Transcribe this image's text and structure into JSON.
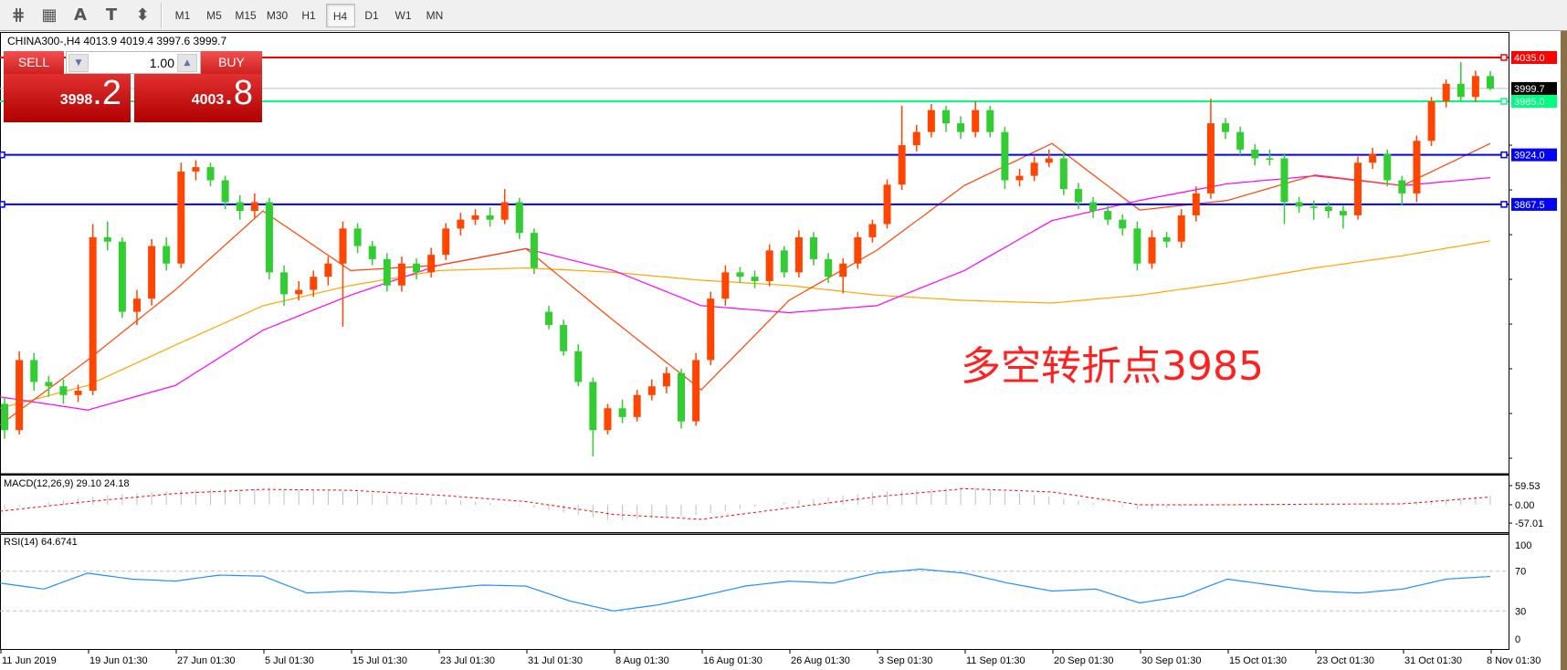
{
  "toolbar": {
    "icons": [
      "fibonacci-fan-icon",
      "fibonacci-grid-icon",
      "text-label-icon",
      "text-box-icon",
      "arrows-icon"
    ],
    "icon_glyphs": [
      "⋕",
      "▦",
      "A",
      "T",
      "⬍"
    ],
    "timeframes": [
      "M1",
      "M5",
      "M15",
      "M30",
      "H1",
      "H4",
      "D1",
      "W1",
      "MN"
    ],
    "active_timeframe": "H4"
  },
  "header": {
    "title": "CHINA300-,H4  4013.9 4019.4 3997.6 3999.7"
  },
  "trade": {
    "sell_label": "SELL",
    "buy_label": "BUY",
    "lot": "1.00",
    "sell_price_main": "3998",
    "sell_price_frac": ".2",
    "buy_price_main": "4003",
    "buy_price_frac": ".8"
  },
  "annotation": "多空转折点3985",
  "colors": {
    "bull": "#ff4500",
    "bear": "#32cd32",
    "ma_fast": "#ff4500",
    "ma_mid": "#ff00ff",
    "ma_slow": "#ffa500",
    "resistance": "#ff0000",
    "pivot": "#00ff7f",
    "support": "#0000ff",
    "bid": "#c0c0c0",
    "rsi": "#1e90ff",
    "macd_signal": "#ff0000",
    "macd_hist": "#c0c0c0"
  },
  "chart_data": {
    "type": "candlestick",
    "symbol": "CHINA300-",
    "timeframe": "H4",
    "ylim": [
      3578,
      4035
    ],
    "y_ticks": [
      "3935.0",
      "3884.0",
      "3833.0",
      "3782.0",
      "3731.0",
      "3680.0",
      "3629.0",
      "3578.0"
    ],
    "x_ticks": [
      "11 Jun 2019",
      "19 Jun 01:30",
      "27 Jun 01:30",
      "5 Jul 01:30",
      "15 Jul 01:30",
      "23 Jul 01:30",
      "31 Jul 01:30",
      "8 Aug 01:30",
      "16 Aug 01:30",
      "26 Aug 01:30",
      "3 Sep 01:30",
      "11 Sep 01:30",
      "20 Sep 01:30",
      "30 Sep 01:30",
      "15 Oct 01:30",
      "23 Oct 01:30",
      "31 Oct 01:30",
      "8 Nov 01:30"
    ],
    "candles_ohlc": [
      [
        3640,
        3648,
        3600,
        3610
      ],
      [
        3610,
        3700,
        3605,
        3690
      ],
      [
        3690,
        3698,
        3655,
        3665
      ],
      [
        3665,
        3672,
        3648,
        3660
      ],
      [
        3660,
        3668,
        3640,
        3650
      ],
      [
        3650,
        3662,
        3642,
        3655
      ],
      [
        3655,
        3845,
        3650,
        3830
      ],
      [
        3830,
        3848,
        3815,
        3825
      ],
      [
        3825,
        3830,
        3738,
        3745
      ],
      [
        3745,
        3770,
        3730,
        3760
      ],
      [
        3760,
        3828,
        3752,
        3820
      ],
      [
        3820,
        3830,
        3792,
        3800
      ],
      [
        3800,
        3915,
        3795,
        3905
      ],
      [
        3905,
        3918,
        3895,
        3910
      ],
      [
        3910,
        3915,
        3888,
        3895
      ],
      [
        3895,
        3900,
        3862,
        3870
      ],
      [
        3870,
        3878,
        3850,
        3860
      ],
      [
        3860,
        3880,
        3852,
        3870
      ],
      [
        3870,
        3875,
        3782,
        3790
      ],
      [
        3790,
        3798,
        3752,
        3765
      ],
      [
        3765,
        3780,
        3758,
        3770
      ],
      [
        3770,
        3792,
        3762,
        3785
      ],
      [
        3785,
        3808,
        3775,
        3800
      ],
      [
        3800,
        3848,
        3728,
        3840
      ],
      [
        3840,
        3846,
        3812,
        3820
      ],
      [
        3820,
        3826,
        3798,
        3805
      ],
      [
        3805,
        3812,
        3768,
        3775
      ],
      [
        3775,
        3808,
        3768,
        3800
      ],
      [
        3800,
        3806,
        3782,
        3790
      ],
      [
        3790,
        3818,
        3784,
        3810
      ],
      [
        3810,
        3846,
        3804,
        3840
      ],
      [
        3840,
        3858,
        3832,
        3850
      ],
      [
        3850,
        3862,
        3844,
        3855
      ],
      [
        3855,
        3864,
        3842,
        3850
      ],
      [
        3850,
        3885,
        3845,
        3870
      ],
      [
        3870,
        3875,
        3828,
        3835
      ],
      [
        3835,
        3840,
        3788,
        3795
      ],
      [
        3745,
        3752,
        3725,
        3730
      ],
      [
        3730,
        3736,
        3695,
        3700
      ],
      [
        3700,
        3708,
        3660,
        3665
      ],
      [
        3665,
        3670,
        3580,
        3610
      ],
      [
        3610,
        3640,
        3605,
        3635
      ],
      [
        3635,
        3645,
        3618,
        3625
      ],
      [
        3625,
        3656,
        3620,
        3650
      ],
      [
        3650,
        3668,
        3644,
        3660
      ],
      [
        3660,
        3682,
        3652,
        3675
      ],
      [
        3675,
        3680,
        3612,
        3620
      ],
      [
        3620,
        3698,
        3615,
        3690
      ],
      [
        3690,
        3768,
        3684,
        3760
      ],
      [
        3760,
        3798,
        3752,
        3790
      ],
      [
        3790,
        3796,
        3778,
        3785
      ],
      [
        3785,
        3792,
        3772,
        3780
      ],
      [
        3780,
        3822,
        3774,
        3815
      ],
      [
        3815,
        3820,
        3784,
        3790
      ],
      [
        3790,
        3838,
        3784,
        3830
      ],
      [
        3830,
        3836,
        3798,
        3805
      ],
      [
        3805,
        3812,
        3778,
        3785
      ],
      [
        3785,
        3806,
        3766,
        3800
      ],
      [
        3800,
        3836,
        3794,
        3830
      ],
      [
        3830,
        3850,
        3824,
        3845
      ],
      [
        3845,
        3896,
        3840,
        3890
      ],
      [
        3890,
        3980,
        3884,
        3935
      ],
      [
        3935,
        3958,
        3928,
        3950
      ],
      [
        3950,
        3982,
        3944,
        3975
      ],
      [
        3975,
        3980,
        3950,
        3960
      ],
      [
        3960,
        3968,
        3942,
        3950
      ],
      [
        3950,
        3985,
        3944,
        3975
      ],
      [
        3975,
        3980,
        3944,
        3950
      ],
      [
        3950,
        3956,
        3885,
        3895
      ],
      [
        3895,
        3908,
        3888,
        3900
      ],
      [
        3900,
        3922,
        3894,
        3915
      ],
      [
        3915,
        3930,
        3910,
        3920
      ],
      [
        3920,
        3928,
        3878,
        3885
      ],
      [
        3885,
        3892,
        3862,
        3870
      ],
      [
        3870,
        3876,
        3852,
        3860
      ],
      [
        3860,
        3866,
        3844,
        3850
      ],
      [
        3850,
        3856,
        3832,
        3840
      ],
      [
        3840,
        3848,
        3792,
        3800
      ],
      [
        3800,
        3838,
        3794,
        3830
      ],
      [
        3830,
        3836,
        3818,
        3825
      ],
      [
        3825,
        3862,
        3818,
        3855
      ],
      [
        3855,
        3888,
        3848,
        3880
      ],
      [
        3880,
        3988,
        3874,
        3960
      ],
      [
        3960,
        3966,
        3942,
        3950
      ],
      [
        3950,
        3956,
        3924,
        3930
      ],
      [
        3930,
        3936,
        3912,
        3920
      ],
      [
        3920,
        3930,
        3912,
        3920
      ],
      [
        3920,
        3926,
        3845,
        3870
      ],
      [
        3870,
        3876,
        3858,
        3865
      ],
      [
        3865,
        3872,
        3850,
        3865
      ],
      [
        3865,
        3870,
        3852,
        3860
      ],
      [
        3860,
        3866,
        3840,
        3855
      ],
      [
        3855,
        3922,
        3850,
        3915
      ],
      [
        3915,
        3932,
        3908,
        3925
      ],
      [
        3925,
        3930,
        3888,
        3895
      ],
      [
        3895,
        3900,
        3866,
        3880
      ],
      [
        3880,
        3946,
        3870,
        3940
      ],
      [
        3940,
        3990,
        3934,
        3985
      ],
      [
        3985,
        4010,
        3978,
        4005
      ],
      [
        4005,
        4030,
        3985,
        3990
      ],
      [
        3990,
        4020,
        3984,
        4013.9
      ],
      [
        4013.9,
        4019.4,
        3997.6,
        3999.7
      ]
    ],
    "moving_averages_at_x_ticks": {
      "fast": [
        3616,
        3690,
        3770,
        3860,
        3792,
        3798,
        3817,
        3735,
        3656,
        3758,
        3815,
        3889,
        3937,
        3861,
        3872,
        3901,
        3889,
        3937
      ],
      "mid": [
        3648,
        3633,
        3661,
        3724,
        3764,
        3798,
        3817,
        3792,
        3752,
        3744,
        3752,
        3792,
        3849,
        3872,
        3891,
        3900,
        3889,
        3898
      ],
      "slow": [
        3635,
        3661,
        3707,
        3752,
        3775,
        3792,
        3795,
        3790,
        3781,
        3775,
        3764,
        3758,
        3755,
        3764,
        3778,
        3795,
        3809,
        3826
      ]
    },
    "levels": [
      {
        "price": 4035.0,
        "label": "4035.0",
        "role": "resistance"
      },
      {
        "price": 3985.0,
        "label": "3985.0",
        "role": "pivot"
      },
      {
        "price": 3924.0,
        "label": "3924.0",
        "role": "support"
      },
      {
        "price": 3867.5,
        "label": "3867.5",
        "role": "support"
      }
    ],
    "bid": {
      "price": 3999.7,
      "label": "3999.7"
    },
    "macd": {
      "label": "MACD(12,26,9) 29.10 24.18",
      "ticks": [
        "59.53",
        "0.00",
        "-57.01"
      ],
      "ylim": [
        -57.01,
        59.53
      ],
      "histogram_at_x_ticks": [
        -15,
        25,
        45,
        50,
        40,
        20,
        -5,
        -50,
        -30,
        10,
        40,
        55,
        25,
        -15,
        5,
        0,
        5,
        29.1
      ],
      "signal_at_x_ticks": [
        -20,
        10,
        35,
        48,
        45,
        30,
        10,
        -30,
        -45,
        -10,
        25,
        50,
        40,
        0,
        0,
        2,
        3,
        24.18
      ]
    },
    "rsi": {
      "label": "RSI(14) 64.6741",
      "ticks": [
        "100",
        "70",
        "30",
        "0"
      ],
      "ylim": [
        0,
        100
      ],
      "levels": [
        70,
        30
      ],
      "values": [
        58,
        52,
        68,
        62,
        60,
        66,
        65,
        48,
        50,
        48,
        52,
        56,
        55,
        40,
        30,
        36,
        45,
        55,
        60,
        58,
        68,
        72,
        68,
        58,
        50,
        52,
        38,
        45,
        62,
        56,
        50,
        48,
        52,
        62,
        64.67
      ]
    }
  }
}
